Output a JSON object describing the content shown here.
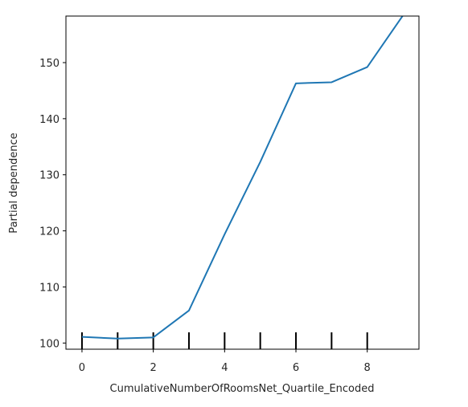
{
  "chart_data": {
    "type": "line",
    "title": "",
    "xlabel": "CumulativeNumberOfRoomsNet_Quartile_Encoded",
    "ylabel": "Partial dependence",
    "xlim": [
      -0.45,
      9.45
    ],
    "ylim": [
      98.9,
      158.3
    ],
    "xticks": [
      0,
      2,
      4,
      6,
      8
    ],
    "yticks": [
      100,
      110,
      120,
      130,
      140,
      150
    ],
    "grid": false,
    "legend": "none",
    "series": [
      {
        "color": "#1f77b4",
        "x": [
          0,
          1,
          2,
          3,
          4,
          5,
          6,
          7,
          8,
          9
        ],
        "y": [
          101.1,
          100.8,
          101.0,
          105.8,
          119.4,
          132.3,
          146.3,
          146.5,
          149.2,
          158.4
        ]
      }
    ],
    "rug": {
      "color": "#000000",
      "x": [
        0,
        1,
        2,
        3,
        4,
        5,
        6,
        7,
        8
      ]
    }
  }
}
